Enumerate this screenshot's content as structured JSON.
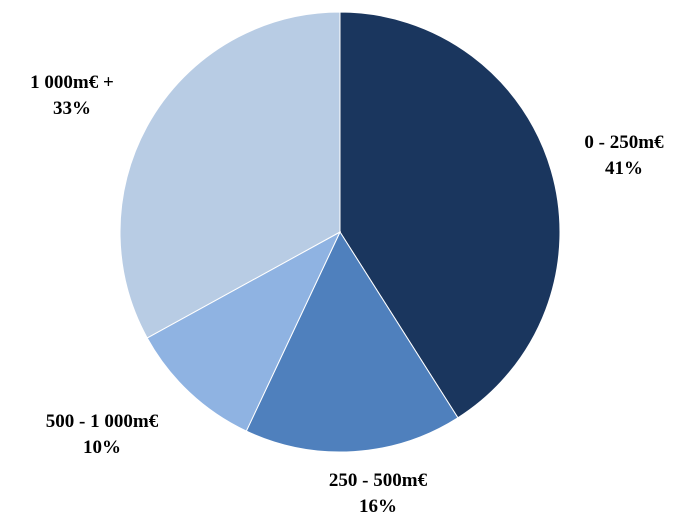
{
  "chart_data": {
    "type": "pie",
    "title": "",
    "start_angle_deg": 0,
    "direction": "clockwise",
    "legend": "none",
    "categories": [
      "0 - 250m€",
      "250 - 500m€",
      "500 - 1 000m€",
      "1 000m€ +"
    ],
    "values": [
      41,
      16,
      10,
      33
    ],
    "value_labels": [
      "41%",
      "16%",
      "10%",
      "33%"
    ],
    "colors": [
      "#1a365e",
      "#4f80bd",
      "#8fb3e2",
      "#b8cce4"
    ]
  }
}
